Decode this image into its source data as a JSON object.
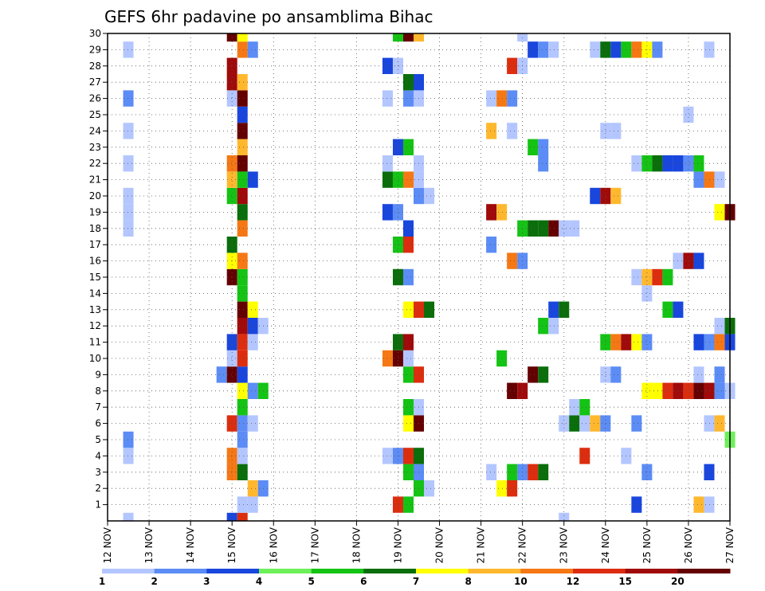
{
  "chart_data": {
    "type": "heatmap",
    "title": "GEFS 6hr padavine po ansamblima Bihac",
    "y_ticks": [
      "1",
      "2",
      "3",
      "4",
      "5",
      "6",
      "7",
      "8",
      "9",
      "10",
      "11",
      "12",
      "13",
      "14",
      "15",
      "16",
      "17",
      "18",
      "19",
      "20",
      "21",
      "22",
      "23",
      "24",
      "25",
      "26",
      "27",
      "28",
      "29",
      "30"
    ],
    "x_ticks": [
      "12 NOV",
      "13 NOV",
      "14 NOV",
      "15 NOV",
      "16 NOV",
      "17 NOV",
      "18 NOV",
      "19 NOV",
      "20 NOV",
      "21 NOV",
      "22 NOV",
      "23 NOV",
      "24 NOV",
      "25 NOV",
      "26 NOV",
      "27 NOV"
    ],
    "x_range_days": [
      0,
      15
    ],
    "y_range_members": [
      0,
      30
    ],
    "grid": true,
    "colorbar_labels": [
      "1",
      "2",
      "3",
      "4",
      "5",
      "6",
      "7",
      "8",
      "10",
      "12",
      "15",
      "20"
    ],
    "colorbar_label_positions": [
      0,
      1,
      2,
      3,
      4,
      5,
      6,
      7,
      8,
      9,
      10,
      11
    ],
    "levels": [
      1,
      2,
      3,
      4,
      5,
      6,
      7,
      8,
      10,
      12,
      15,
      20
    ],
    "level_colors": [
      "#b4c6ff",
      "#5c8cf5",
      "#1946dc",
      "#6ef05a",
      "#14c314",
      "#0a6e0a",
      "#ffff00",
      "#ffb82e",
      "#f57814",
      "#dc2d0f",
      "#a00a0a",
      "#640000"
    ],
    "cells": [
      [
        0.5,
        0,
        0
      ],
      [
        3,
        0,
        2
      ],
      [
        3.25,
        0,
        9
      ],
      [
        11,
        0,
        0
      ],
      [
        3.25,
        1,
        0
      ],
      [
        3.5,
        1,
        0
      ],
      [
        7,
        1,
        9
      ],
      [
        7.25,
        1,
        4
      ],
      [
        12.75,
        1,
        2
      ],
      [
        14.25,
        1,
        7
      ],
      [
        14.5,
        1,
        0
      ],
      [
        3.5,
        2,
        7
      ],
      [
        3.75,
        2,
        1
      ],
      [
        7.5,
        2,
        4
      ],
      [
        7.75,
        2,
        0
      ],
      [
        9.5,
        2,
        6
      ],
      [
        9.75,
        2,
        9
      ],
      [
        3,
        3,
        8
      ],
      [
        3.25,
        3,
        5
      ],
      [
        7.25,
        3,
        4
      ],
      [
        7.5,
        3,
        1
      ],
      [
        9.25,
        3,
        0
      ],
      [
        9.75,
        3,
        4
      ],
      [
        10,
        3,
        1
      ],
      [
        10.25,
        3,
        9
      ],
      [
        10.5,
        3,
        5
      ],
      [
        13,
        3,
        1
      ],
      [
        14.5,
        3,
        2
      ],
      [
        0.5,
        4,
        0
      ],
      [
        3,
        4,
        8
      ],
      [
        3.25,
        4,
        0
      ],
      [
        6.75,
        4,
        0
      ],
      [
        7,
        4,
        1
      ],
      [
        7.25,
        4,
        9
      ],
      [
        7.5,
        4,
        5
      ],
      [
        11.5,
        4,
        9
      ],
      [
        12.5,
        4,
        0
      ],
      [
        0.5,
        5,
        1
      ],
      [
        3.25,
        5,
        1
      ],
      [
        15,
        5,
        3
      ],
      [
        3,
        6,
        9
      ],
      [
        3.25,
        6,
        1
      ],
      [
        3.5,
        6,
        0
      ],
      [
        7.25,
        6,
        6
      ],
      [
        7.5,
        6,
        11
      ],
      [
        11,
        6,
        0
      ],
      [
        11.25,
        6,
        5
      ],
      [
        11.5,
        6,
        0
      ],
      [
        11.75,
        6,
        7
      ],
      [
        12,
        6,
        1
      ],
      [
        12.75,
        6,
        1
      ],
      [
        14.5,
        6,
        0
      ],
      [
        14.75,
        6,
        7
      ],
      [
        3.25,
        7,
        4
      ],
      [
        7.25,
        7,
        4
      ],
      [
        7.5,
        7,
        0
      ],
      [
        11.25,
        7,
        0
      ],
      [
        11.5,
        7,
        4
      ],
      [
        3.25,
        8,
        6
      ],
      [
        3.5,
        8,
        1
      ],
      [
        3.75,
        8,
        4
      ],
      [
        9.75,
        8,
        11
      ],
      [
        10,
        8,
        10
      ],
      [
        13,
        8,
        6
      ],
      [
        13.25,
        8,
        6
      ],
      [
        13.5,
        8,
        9
      ],
      [
        13.75,
        8,
        10
      ],
      [
        14,
        8,
        9
      ],
      [
        14.25,
        8,
        11
      ],
      [
        14.5,
        8,
        10
      ],
      [
        14.75,
        8,
        1
      ],
      [
        15,
        8,
        0
      ],
      [
        2.75,
        9,
        1
      ],
      [
        3,
        9,
        11
      ],
      [
        3.25,
        9,
        2
      ],
      [
        7.25,
        9,
        4
      ],
      [
        7.5,
        9,
        9
      ],
      [
        10.25,
        9,
        11
      ],
      [
        10.5,
        9,
        5
      ],
      [
        12,
        9,
        0
      ],
      [
        12.25,
        9,
        1
      ],
      [
        14.25,
        9,
        0
      ],
      [
        14.75,
        9,
        1
      ],
      [
        3,
        10,
        0
      ],
      [
        3.25,
        10,
        9
      ],
      [
        6.75,
        10,
        8
      ],
      [
        7,
        10,
        11
      ],
      [
        7.25,
        10,
        0
      ],
      [
        9.5,
        10,
        4
      ],
      [
        3,
        11,
        2
      ],
      [
        3.25,
        11,
        9
      ],
      [
        3.5,
        11,
        0
      ],
      [
        7,
        11,
        5
      ],
      [
        7.25,
        11,
        10
      ],
      [
        12,
        11,
        4
      ],
      [
        12.25,
        11,
        8
      ],
      [
        12.5,
        11,
        10
      ],
      [
        12.75,
        11,
        6
      ],
      [
        13,
        11,
        1
      ],
      [
        14.25,
        11,
        2
      ],
      [
        14.5,
        11,
        1
      ],
      [
        14.75,
        11,
        8
      ],
      [
        15,
        11,
        2
      ],
      [
        3.25,
        12,
        10
      ],
      [
        3.5,
        12,
        2
      ],
      [
        3.75,
        12,
        0
      ],
      [
        10.5,
        12,
        4
      ],
      [
        10.75,
        12,
        0
      ],
      [
        14.75,
        12,
        0
      ],
      [
        15,
        12,
        5
      ],
      [
        3.25,
        13,
        11
      ],
      [
        3.5,
        13,
        6
      ],
      [
        7.25,
        13,
        6
      ],
      [
        7.5,
        13,
        9
      ],
      [
        7.75,
        13,
        5
      ],
      [
        10.75,
        13,
        2
      ],
      [
        11,
        13,
        5
      ],
      [
        13.5,
        13,
        4
      ],
      [
        13.75,
        13,
        2
      ],
      [
        3.25,
        14,
        4
      ],
      [
        13,
        14,
        0
      ],
      [
        3,
        15,
        11
      ],
      [
        3.25,
        15,
        4
      ],
      [
        7,
        15,
        5
      ],
      [
        7.25,
        15,
        1
      ],
      [
        12.75,
        15,
        0
      ],
      [
        13,
        15,
        7
      ],
      [
        13.25,
        15,
        9
      ],
      [
        13.5,
        15,
        4
      ],
      [
        3,
        16,
        6
      ],
      [
        3.25,
        16,
        8
      ],
      [
        9.75,
        16,
        8
      ],
      [
        10,
        16,
        1
      ],
      [
        13.75,
        16,
        0
      ],
      [
        14,
        16,
        10
      ],
      [
        14.25,
        16,
        2
      ],
      [
        3,
        17,
        5
      ],
      [
        7,
        17,
        4
      ],
      [
        7.25,
        17,
        9
      ],
      [
        9.25,
        17,
        1
      ],
      [
        0.5,
        18,
        0
      ],
      [
        3.25,
        18,
        8
      ],
      [
        7.25,
        18,
        2
      ],
      [
        10,
        18,
        4
      ],
      [
        10.25,
        18,
        5
      ],
      [
        10.5,
        18,
        5
      ],
      [
        10.75,
        18,
        11
      ],
      [
        11,
        18,
        0
      ],
      [
        11.25,
        18,
        0
      ],
      [
        0.5,
        19,
        0
      ],
      [
        3.25,
        19,
        5
      ],
      [
        6.75,
        19,
        2
      ],
      [
        7,
        19,
        1
      ],
      [
        9.25,
        19,
        10
      ],
      [
        9.5,
        19,
        7
      ],
      [
        14.75,
        19,
        6
      ],
      [
        15,
        19,
        11
      ],
      [
        0.5,
        20,
        0
      ],
      [
        3,
        20,
        4
      ],
      [
        3.25,
        20,
        10
      ],
      [
        7.5,
        20,
        1
      ],
      [
        7.75,
        20,
        0
      ],
      [
        11.75,
        20,
        2
      ],
      [
        12,
        20,
        10
      ],
      [
        12.25,
        20,
        7
      ],
      [
        3,
        21,
        7
      ],
      [
        3.25,
        21,
        4
      ],
      [
        3.5,
        21,
        2
      ],
      [
        6.75,
        21,
        5
      ],
      [
        7,
        21,
        4
      ],
      [
        7.25,
        21,
        8
      ],
      [
        7.5,
        21,
        0
      ],
      [
        14.25,
        21,
        1
      ],
      [
        14.5,
        21,
        8
      ],
      [
        14.75,
        21,
        0
      ],
      [
        0.5,
        22,
        0
      ],
      [
        3,
        22,
        8
      ],
      [
        3.25,
        22,
        11
      ],
      [
        6.75,
        22,
        0
      ],
      [
        7.5,
        22,
        0
      ],
      [
        10.5,
        22,
        1
      ],
      [
        12.75,
        22,
        0
      ],
      [
        13,
        22,
        4
      ],
      [
        13.25,
        22,
        5
      ],
      [
        13.5,
        22,
        2
      ],
      [
        13.75,
        22,
        2
      ],
      [
        14,
        22,
        1
      ],
      [
        14.25,
        22,
        4
      ],
      [
        3.25,
        23,
        7
      ],
      [
        7,
        23,
        2
      ],
      [
        7.25,
        23,
        4
      ],
      [
        10.25,
        23,
        4
      ],
      [
        10.5,
        23,
        1
      ],
      [
        0.5,
        24,
        0
      ],
      [
        3.25,
        24,
        11
      ],
      [
        9.25,
        24,
        7
      ],
      [
        9.75,
        24,
        0
      ],
      [
        12,
        24,
        0
      ],
      [
        12.25,
        24,
        0
      ],
      [
        3.25,
        25,
        2
      ],
      [
        14,
        25,
        0
      ],
      [
        0.5,
        26,
        1
      ],
      [
        3,
        26,
        0
      ],
      [
        3.25,
        26,
        11
      ],
      [
        6.75,
        26,
        0
      ],
      [
        7.25,
        26,
        1
      ],
      [
        7.5,
        26,
        0
      ],
      [
        9.25,
        26,
        0
      ],
      [
        9.5,
        26,
        8
      ],
      [
        9.75,
        26,
        1
      ],
      [
        3,
        27,
        10
      ],
      [
        3.25,
        27,
        7
      ],
      [
        7.25,
        27,
        5
      ],
      [
        7.5,
        27,
        2
      ],
      [
        3,
        28,
        10
      ],
      [
        6.75,
        28,
        2
      ],
      [
        7,
        28,
        0
      ],
      [
        9.75,
        28,
        9
      ],
      [
        10,
        28,
        0
      ],
      [
        0.5,
        29,
        0
      ],
      [
        3.25,
        29,
        8
      ],
      [
        3.5,
        29,
        1
      ],
      [
        10.25,
        29,
        2
      ],
      [
        10.5,
        29,
        1
      ],
      [
        10.75,
        29,
        0
      ],
      [
        11.75,
        29,
        0
      ],
      [
        12,
        29,
        5
      ],
      [
        12.25,
        29,
        2
      ],
      [
        12.5,
        29,
        4
      ],
      [
        12.75,
        29,
        8
      ],
      [
        13,
        29,
        6
      ],
      [
        13.25,
        29,
        1
      ],
      [
        14.5,
        29,
        0
      ],
      [
        3,
        30,
        11
      ],
      [
        3.25,
        30,
        6
      ],
      [
        7,
        30,
        4
      ],
      [
        7.25,
        30,
        11
      ],
      [
        7.5,
        30,
        7
      ],
      [
        10,
        30,
        0
      ]
    ]
  }
}
